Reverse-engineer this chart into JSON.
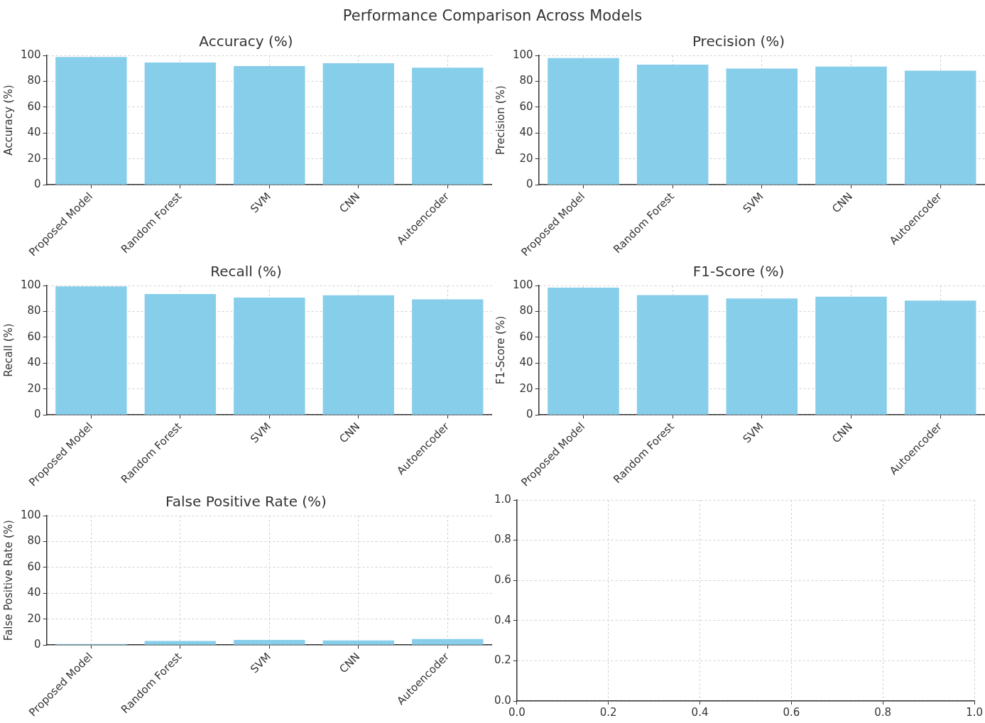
{
  "chart_data": [
    {
      "type": "bar",
      "title": "Accuracy (%)",
      "ylabel": "Accuracy (%)",
      "annotations": [
        "Performance Comparison Across Models"
      ],
      "categories": [
        "Proposed Model",
        "Random Forest",
        "SVM",
        "CNN",
        "Autoencoder"
      ],
      "values": [
        98.7,
        94.5,
        91.8,
        93.9,
        90.5
      ],
      "color": "#87ceeb",
      "ylim": [
        0,
        100
      ],
      "yticks": [
        0,
        20,
        40,
        60,
        80,
        100
      ],
      "grid": true
    },
    {
      "type": "bar",
      "title": "Precision (%)",
      "ylabel": "Precision (%)",
      "categories": [
        "Proposed Model",
        "Random Forest",
        "SVM",
        "CNN",
        "Autoencoder"
      ],
      "values": [
        98.0,
        92.8,
        89.8,
        91.4,
        88.2
      ],
      "color": "#87ceeb",
      "ylim": [
        0,
        100
      ],
      "yticks": [
        0,
        20,
        40,
        60,
        80,
        100
      ],
      "grid": true
    },
    {
      "type": "bar",
      "title": "Recall (%)",
      "ylabel": "Recall (%)",
      "categories": [
        "Proposed Model",
        "Random Forest",
        "SVM",
        "CNN",
        "Autoencoder"
      ],
      "values": [
        99.3,
        93.4,
        90.7,
        92.4,
        89.3
      ],
      "color": "#87ceeb",
      "ylim": [
        0,
        100
      ],
      "yticks": [
        0,
        20,
        40,
        60,
        80,
        100
      ],
      "grid": true
    },
    {
      "type": "bar",
      "title": "F1-Score (%)",
      "ylabel": "F1-Score (%)",
      "categories": [
        "Proposed Model",
        "Random Forest",
        "SVM",
        "CNN",
        "Autoencoder"
      ],
      "values": [
        98.3,
        92.6,
        90.0,
        91.4,
        88.3
      ],
      "color": "#87ceeb",
      "ylim": [
        0,
        100
      ],
      "yticks": [
        0,
        20,
        40,
        60,
        80,
        100
      ],
      "grid": true
    },
    {
      "type": "bar",
      "title": "False Positive Rate (%)",
      "ylabel": "False Positive Rate (%)",
      "categories": [
        "Proposed Model",
        "Random Forest",
        "SVM",
        "CNN",
        "Autoencoder"
      ],
      "values": [
        0.8,
        3.2,
        3.9,
        3.6,
        4.6
      ],
      "color": "#87ceeb",
      "ylim": [
        0,
        100
      ],
      "yticks": [
        0,
        20,
        40,
        60,
        80,
        100
      ],
      "grid": true
    },
    {
      "type": "scatter",
      "xlim": [
        0,
        1
      ],
      "xticks": [
        {
          "value": 0,
          "label": "0.0"
        },
        {
          "value": 0.2,
          "label": "0.2"
        },
        {
          "value": 0.4,
          "label": "0.4"
        },
        {
          "value": 0.6,
          "label": "0.6"
        },
        {
          "value": 0.8,
          "label": "0.8"
        },
        {
          "value": 1,
          "label": "1.0"
        }
      ],
      "ylim": [
        0,
        1
      ],
      "yticks": [
        {
          "value": 0,
          "label": "0.0"
        },
        {
          "value": 0.2,
          "label": "0.2"
        },
        {
          "value": 0.4,
          "label": "0.4"
        },
        {
          "value": 0.6,
          "label": "0.6"
        },
        {
          "value": 0.8,
          "label": "0.8"
        },
        {
          "value": 1,
          "label": "1.0"
        }
      ],
      "grid": true
    }
  ]
}
